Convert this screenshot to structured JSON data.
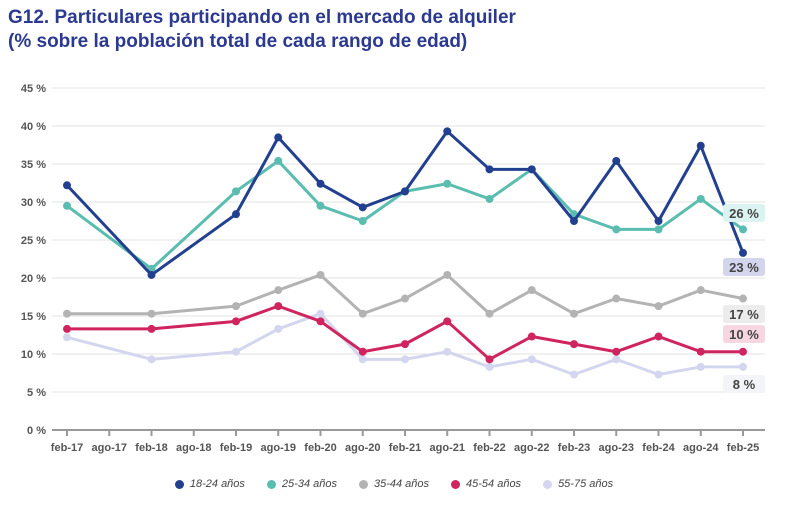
{
  "chart_data": {
    "type": "line",
    "title": "G12. Particulares participando en el mercado de alquiler",
    "subtitle": "(% sobre la población total de cada rango de edad)",
    "xlabel": "",
    "ylabel": "",
    "ylim": [
      0,
      45
    ],
    "yticks": [
      "0 %",
      "5 %",
      "10 %",
      "15 %",
      "20 %",
      "25 %",
      "30 %",
      "35 %",
      "40 %",
      "45 %"
    ],
    "categories": [
      "feb-17",
      "ago-17",
      "feb-18",
      "ago-18",
      "feb-19",
      "ago-19",
      "feb-20",
      "ago-20",
      "feb-21",
      "ago-21",
      "feb-22",
      "ago-22",
      "feb-23",
      "ago-23",
      "feb-24",
      "ago-24",
      "feb-25"
    ],
    "x": [
      "feb-17",
      "feb-18",
      "feb-19",
      "ago-19",
      "feb-20",
      "ago-20",
      "feb-21",
      "ago-21",
      "feb-22",
      "ago-22",
      "feb-23",
      "ago-23",
      "feb-24",
      "ago-24",
      "feb-25"
    ],
    "grid": true,
    "legend": "bottom",
    "series": [
      {
        "name": "18-24 años",
        "color": "#22408f",
        "values": [
          32.2,
          20.4,
          28.4,
          38.5,
          32.4,
          29.3,
          31.4,
          39.3,
          34.3,
          34.3,
          27.5,
          35.4,
          27.5,
          37.4,
          23.3
        ],
        "end_label": "23 %",
        "end_bg": "#d3d5ec"
      },
      {
        "name": "25-34 años",
        "color": "#5bbcb0",
        "values": [
          29.5,
          21.2,
          31.4,
          35.4,
          29.5,
          27.5,
          31.4,
          32.4,
          30.4,
          34.3,
          28.4,
          26.4,
          26.4,
          30.4,
          26.4
        ],
        "end_label": "26 %",
        "end_bg": "#dcf4f1"
      },
      {
        "name": "35-44 años",
        "color": "#b3b3b3",
        "values": [
          15.3,
          15.3,
          16.3,
          18.4,
          20.4,
          15.3,
          17.3,
          20.4,
          15.3,
          18.4,
          15.3,
          17.3,
          16.3,
          18.4,
          17.3
        ],
        "end_label": "17 %",
        "end_bg": "#ececec"
      },
      {
        "name": "45-54 años",
        "color": "#d0245e",
        "values": [
          13.3,
          13.3,
          14.3,
          16.3,
          14.3,
          10.3,
          11.3,
          14.3,
          9.3,
          12.3,
          11.3,
          10.3,
          12.3,
          10.3,
          10.3
        ],
        "end_label": "10 %",
        "end_bg": "#f6d6e0"
      },
      {
        "name": "55-75 años",
        "color": "#d3d6ee",
        "values": [
          12.2,
          9.3,
          10.3,
          13.3,
          15.3,
          9.3,
          9.3,
          10.3,
          8.3,
          9.3,
          7.3,
          9.3,
          7.3,
          8.3,
          8.3
        ],
        "end_label": "8 %",
        "end_bg": "#f3f4f8"
      }
    ]
  }
}
